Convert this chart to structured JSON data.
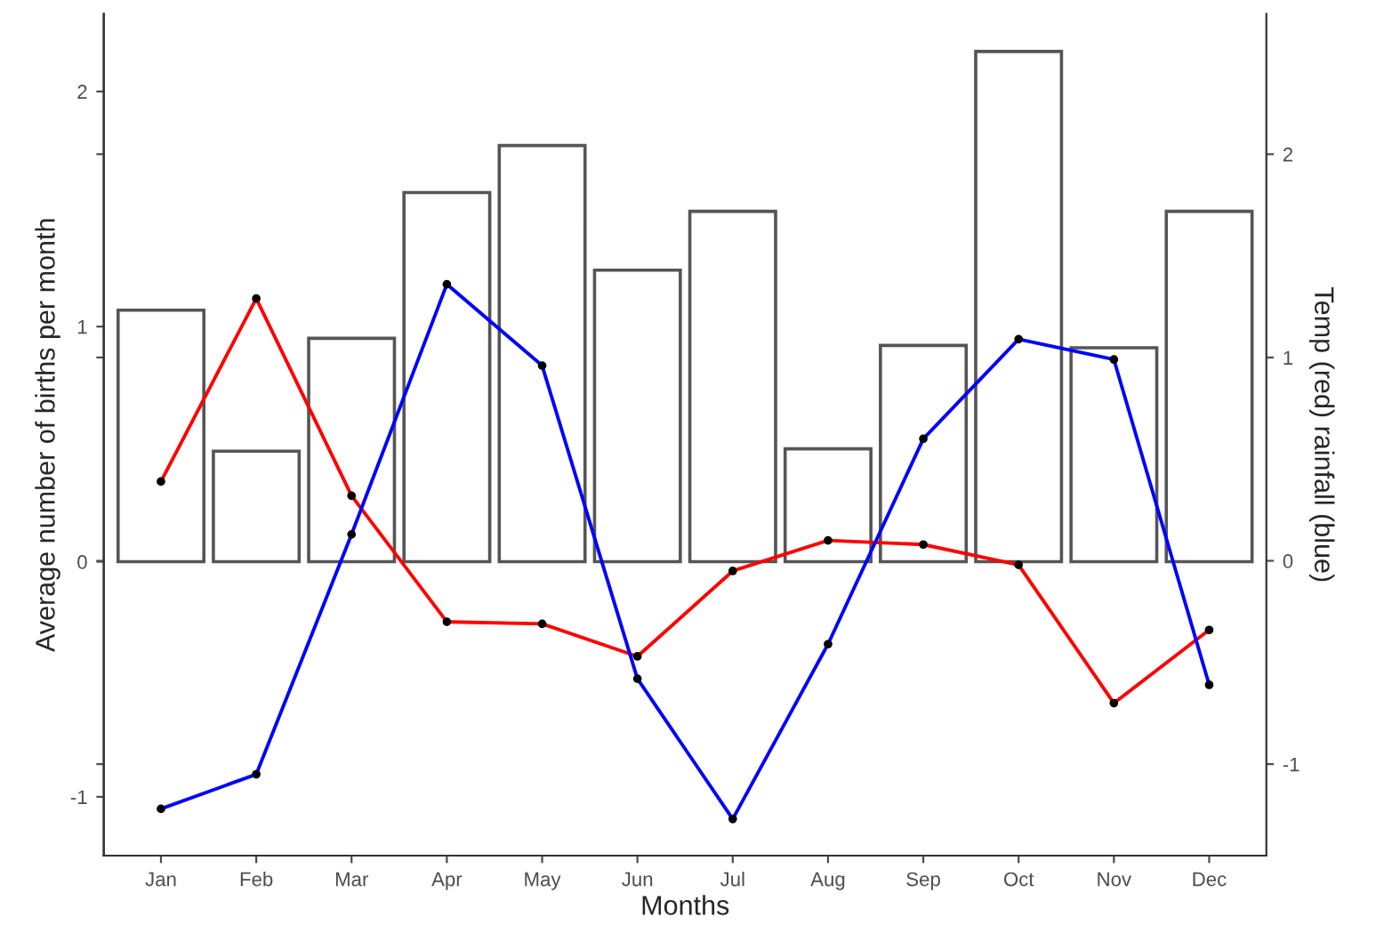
{
  "chart_data": {
    "type": "bar",
    "xlabel": "Months",
    "ylabel": "Average number of births per month",
    "y2label": "Temp (red) rainfall (blue)",
    "categories": [
      "Jan",
      "Feb",
      "Mar",
      "Apr",
      "May",
      "Jun",
      "Jul",
      "Aug",
      "Sep",
      "Oct",
      "Nov",
      "Dec"
    ],
    "ylim": [
      -1.25,
      2.33
    ],
    "yticks": [
      -1,
      0,
      1,
      2
    ],
    "y2lim": [
      -1.45,
      2.69
    ],
    "y2ticks": [
      -1,
      0,
      1,
      2
    ],
    "grid": false,
    "legend": false,
    "marker": "circle",
    "line_style": "solid",
    "series": [
      {
        "color": "#555555",
        "values": [
          1.07,
          0.47,
          0.95,
          1.57,
          1.77,
          1.24,
          1.49,
          0.48,
          0.92,
          2.17,
          0.91,
          1.49
        ]
      },
      {
        "type": "line",
        "axis": "y2",
        "color": "#ff0000",
        "values": [
          0.39,
          1.29,
          0.32,
          -0.3,
          -0.31,
          -0.47,
          -0.05,
          0.1,
          0.08,
          -0.02,
          -0.7,
          -0.34
        ]
      },
      {
        "type": "line",
        "axis": "y2",
        "color": "#0000ff",
        "values": [
          -1.22,
          -1.05,
          0.13,
          1.36,
          0.96,
          -0.58,
          -1.27,
          -0.41,
          0.6,
          1.09,
          0.99,
          -0.61
        ]
      }
    ]
  }
}
